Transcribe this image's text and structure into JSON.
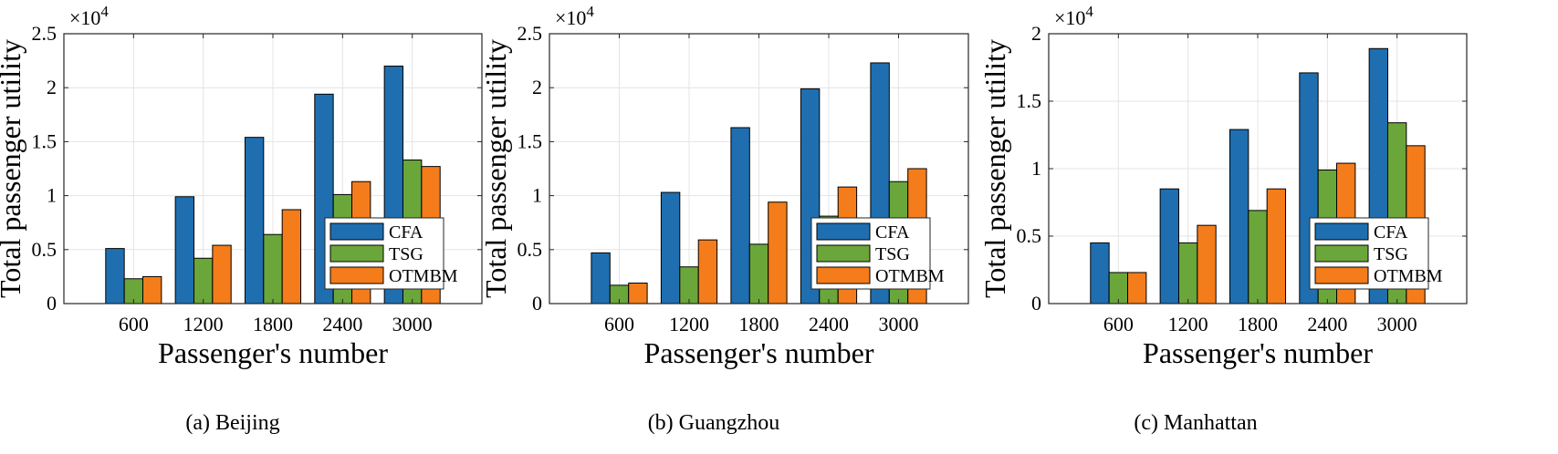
{
  "chart_data": [
    {
      "type": "bar",
      "caption": "(a) Beijing",
      "xlabel": "Passenger's number",
      "ylabel": "Total passenger utility",
      "y_multiplier": "×10^4",
      "ylim": [
        0,
        2.5
      ],
      "yticks": [
        0,
        0.5,
        1,
        1.5,
        2,
        2.5
      ],
      "categories": [
        "600",
        "1200",
        "1800",
        "2400",
        "3000"
      ],
      "series": [
        {
          "name": "CFA",
          "values": [
            0.51,
            0.99,
            1.54,
            1.94,
            2.2
          ]
        },
        {
          "name": "TSG",
          "values": [
            0.23,
            0.42,
            0.64,
            1.01,
            1.33
          ]
        },
        {
          "name": "OTMBM",
          "values": [
            0.25,
            0.54,
            0.87,
            1.13,
            1.27
          ]
        }
      ],
      "grid": true,
      "legend": "lower-right"
    },
    {
      "type": "bar",
      "caption": "(b) Guangzhou",
      "xlabel": "Passenger's number",
      "ylabel": "Total passenger utility",
      "y_multiplier": "×10^4",
      "ylim": [
        0,
        2.5
      ],
      "yticks": [
        0,
        0.5,
        1,
        1.5,
        2,
        2.5
      ],
      "categories": [
        "600",
        "1200",
        "1800",
        "2400",
        "3000"
      ],
      "series": [
        {
          "name": "CFA",
          "values": [
            0.47,
            1.03,
            1.63,
            1.99,
            2.23
          ]
        },
        {
          "name": "TSG",
          "values": [
            0.17,
            0.34,
            0.55,
            0.81,
            1.13
          ]
        },
        {
          "name": "OTMBM",
          "values": [
            0.19,
            0.59,
            0.94,
            1.08,
            1.25
          ]
        }
      ],
      "grid": true,
      "legend": "lower-right"
    },
    {
      "type": "bar",
      "caption": "(c) Manhattan",
      "xlabel": "Passenger's number",
      "ylabel": "Total passenger utility",
      "y_multiplier": "×10^4",
      "ylim": [
        0,
        2
      ],
      "yticks": [
        0,
        0.5,
        1,
        1.5,
        2
      ],
      "categories": [
        "600",
        "1200",
        "1800",
        "2400",
        "3000"
      ],
      "series": [
        {
          "name": "CFA",
          "values": [
            0.45,
            0.85,
            1.29,
            1.71,
            1.89
          ]
        },
        {
          "name": "TSG",
          "values": [
            0.23,
            0.45,
            0.69,
            0.99,
            1.34
          ]
        },
        {
          "name": "OTMBM",
          "values": [
            0.23,
            0.58,
            0.85,
            1.04,
            1.17
          ]
        }
      ],
      "grid": true,
      "legend": "lower-right"
    }
  ],
  "colors": {
    "CFA": "#1f6fb0",
    "TSG": "#6aa63a",
    "OTMBM": "#f47c1a",
    "grid": "#e4e4e4",
    "axis": "#262626"
  }
}
